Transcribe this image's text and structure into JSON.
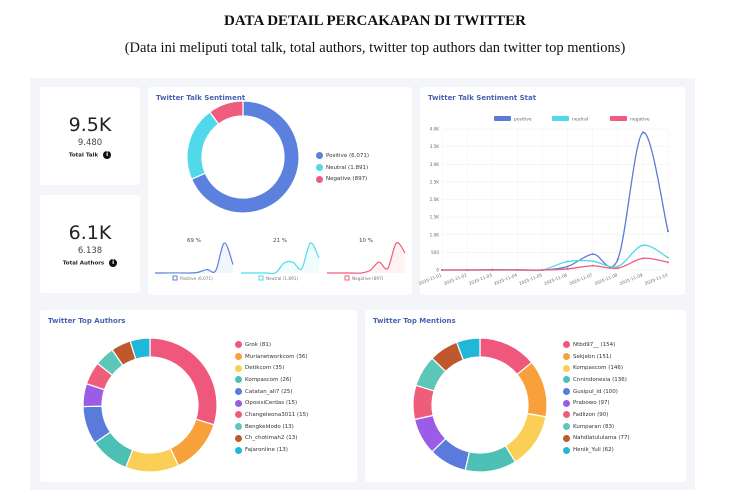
{
  "header": {
    "title": "DATA DETAIL PERCAKAPAN DI TWITTER",
    "subtitle": "(Data ini meliputi total talk, total authors, twitter top authors dan twitter top mentions)"
  },
  "total_talk": {
    "short": "9.5K",
    "full": "9.480",
    "label": "Total Talk",
    "icon": "info-icon"
  },
  "total_authors": {
    "short": "6.1K",
    "full": "6.138",
    "label": "Total Authors",
    "icon": "info-icon"
  },
  "sentiment": {
    "title": "Twitter Talk Sentiment",
    "items": [
      {
        "label": "Positive (6.071)",
        "value": 6071,
        "pct": "69 %",
        "mini": "Positive (6.071)",
        "color": "#5b80de"
      },
      {
        "label": "Neutral (1.891)",
        "value": 1891,
        "pct": "21 %",
        "mini": "Neutral (1.891)",
        "color": "#4fd9ea"
      },
      {
        "label": "Negative (897)",
        "value": 897,
        "pct": "10 %",
        "mini": "Negative (897)",
        "color": "#ef5d7e"
      }
    ]
  },
  "chart_data": [
    {
      "type": "line",
      "title": "Twitter Talk Sentiment Stat",
      "legend_position": "top",
      "grid": true,
      "categories": [
        "2025-11-01",
        "2025-11-02",
        "2025-11-03",
        "2025-11-04",
        "2025-11-05",
        "2025-11-06",
        "2025-11-07",
        "2025-11-08",
        "2025-11-09",
        "2025-11-10"
      ],
      "yticks": [
        "0",
        "500",
        "1.0K",
        "1.5K",
        "2.0K",
        "2.5K",
        "3.0K",
        "3.5K",
        "4.0K"
      ],
      "ylim": [
        0,
        4000
      ],
      "series": [
        {
          "name": "positive",
          "color": "#5b7bd5",
          "values": [
            0,
            0,
            10,
            5,
            0,
            100,
            450,
            300,
            3900,
            1100
          ]
        },
        {
          "name": "neutral",
          "color": "#4fd9ea",
          "values": [
            0,
            0,
            0,
            0,
            5,
            240,
            250,
            100,
            700,
            350
          ]
        },
        {
          "name": "negative",
          "color": "#ef5d7e",
          "values": [
            0,
            0,
            0,
            0,
            0,
            30,
            120,
            50,
            330,
            220
          ]
        }
      ]
    },
    {
      "type": "pie",
      "title": "Twitter Top Authors",
      "labels": [
        "Grok (81)",
        "Murianetworkcom (36)",
        "Detikcom (35)",
        "Kompascom (26)",
        "Catatan_ali7 (25)",
        "OposisiCerdas (15)",
        "Changeleona3011 (15)",
        "Bengkeldodo (13)",
        "Ch_chotimah2 (13)",
        "Fajaronline (13)"
      ],
      "values": [
        81,
        36,
        35,
        26,
        25,
        15,
        15,
        13,
        13,
        13
      ],
      "colors": [
        "#f0577d",
        "#f7a03c",
        "#fbcf55",
        "#4dc0b5",
        "#5b7bdc",
        "#9b5de5",
        "#ef5d7a",
        "#5cc6b8",
        "#c0582e",
        "#20b7d8"
      ]
    },
    {
      "type": "pie",
      "title": "Twitter Top Mentions",
      "labels": [
        "Ntbd97__ (154)",
        "Sekjebn (151)",
        "Kompascom (146)",
        "Cnnindonesia (136)",
        "Gusipul_id (100)",
        "Prabowo (97)",
        "Fadlizon (90)",
        "Kumparan (83)",
        "Nahdlatululama (77)",
        "Henik_Yuli (62)"
      ],
      "values": [
        154,
        151,
        146,
        136,
        100,
        97,
        90,
        83,
        77,
        62
      ],
      "colors": [
        "#f0577d",
        "#f7a03c",
        "#fbcf55",
        "#4dc0b5",
        "#5b7bdc",
        "#9b5de5",
        "#ef5d7a",
        "#5cc6b8",
        "#c0582e",
        "#20b7d8"
      ]
    }
  ]
}
